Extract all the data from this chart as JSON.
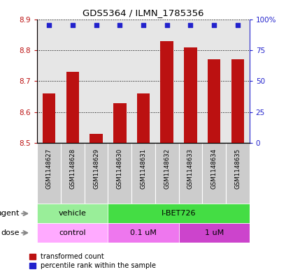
{
  "title": "GDS5364 / ILMN_1785356",
  "samples": [
    "GSM1148627",
    "GSM1148628",
    "GSM1148629",
    "GSM1148630",
    "GSM1148631",
    "GSM1148632",
    "GSM1148633",
    "GSM1148634",
    "GSM1148635"
  ],
  "bar_values": [
    8.66,
    8.73,
    8.53,
    8.63,
    8.66,
    8.83,
    8.81,
    8.77,
    8.77
  ],
  "percentile_values": [
    95,
    95,
    95,
    95,
    95,
    95,
    95,
    95,
    95
  ],
  "ylim_left": [
    8.5,
    8.9
  ],
  "ylim_right": [
    0,
    100
  ],
  "yticks_left": [
    8.5,
    8.6,
    8.7,
    8.8,
    8.9
  ],
  "yticks_right": [
    0,
    25,
    50,
    75,
    100
  ],
  "bar_color": "#bb1111",
  "dot_color": "#2222cc",
  "agent_labels": [
    {
      "label": "vehicle",
      "start": 0,
      "end": 3,
      "color": "#99ee99"
    },
    {
      "label": "I-BET726",
      "start": 3,
      "end": 9,
      "color": "#44dd44"
    }
  ],
  "dose_labels": [
    {
      "label": "control",
      "start": 0,
      "end": 3,
      "color": "#ffaaff"
    },
    {
      "label": "0.1 uM",
      "start": 3,
      "end": 6,
      "color": "#ee77ee"
    },
    {
      "label": "1 uM",
      "start": 6,
      "end": 9,
      "color": "#cc44cc"
    }
  ],
  "legend_items": [
    {
      "label": "transformed count",
      "color": "#bb1111"
    },
    {
      "label": "percentile rank within the sample",
      "color": "#2222cc"
    }
  ],
  "agent_row_label": "agent",
  "dose_row_label": "dose",
  "bar_width": 0.55,
  "col_bg_colors": [
    "#cccccc",
    "#bbbbbb"
  ]
}
